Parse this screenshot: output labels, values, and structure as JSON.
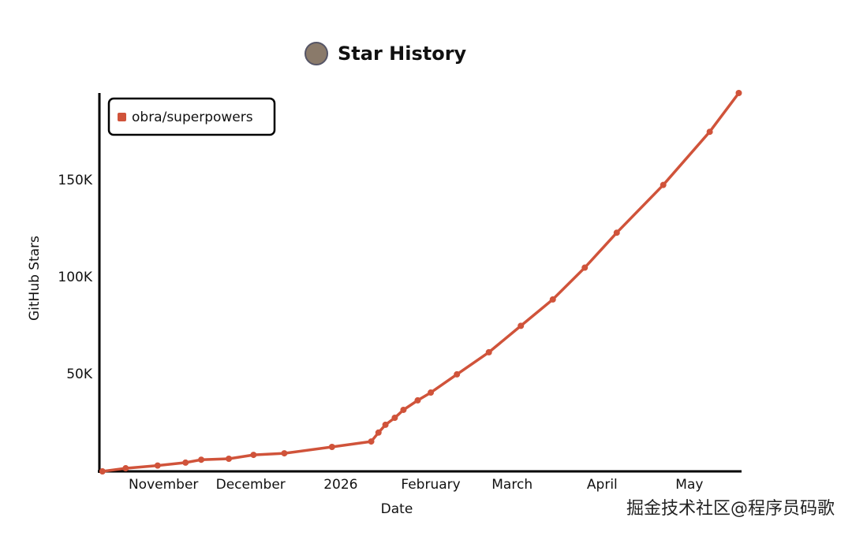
{
  "chart_data": {
    "type": "line",
    "title": "Star History",
    "x_label": "Date",
    "y_label": "GitHub Stars",
    "x": [
      -21,
      -13,
      -2,
      7.6,
      13,
      22.5,
      31,
      41.6,
      58,
      71.5,
      74,
      76.4,
      79.6,
      82.6,
      87.5,
      92,
      101,
      112,
      123,
      134,
      145,
      156,
      172,
      188,
      198
    ],
    "series": [
      {
        "name": "obra/superpowers",
        "color": "#d0533a",
        "values": [
          0,
          1600,
          3000,
          4500,
          6000,
          6500,
          8500,
          9300,
          12600,
          15400,
          20000,
          24000,
          27600,
          31700,
          36600,
          40600,
          50000,
          61400,
          75000,
          88600,
          105000,
          123000,
          147600,
          175000,
          195000
        ]
      }
    ],
    "xlim": [
      -21.5,
      199.5
    ],
    "xticks": [
      {
        "value": 0,
        "label": "November"
      },
      {
        "value": 30,
        "label": "December"
      },
      {
        "value": 61,
        "label": "2026"
      },
      {
        "value": 92,
        "label": "February"
      },
      {
        "value": 120,
        "label": "March"
      },
      {
        "value": 151,
        "label": "April"
      },
      {
        "value": 181,
        "label": "May"
      }
    ],
    "ylim": [
      0,
      195000
    ],
    "yticks": [
      {
        "value": 50000,
        "label": "50K"
      },
      {
        "value": 100000,
        "label": "100K"
      },
      {
        "value": 150000,
        "label": "150K"
      }
    ],
    "legend": "top-left",
    "watermark": "掘金技术社区@程序员码歌"
  }
}
